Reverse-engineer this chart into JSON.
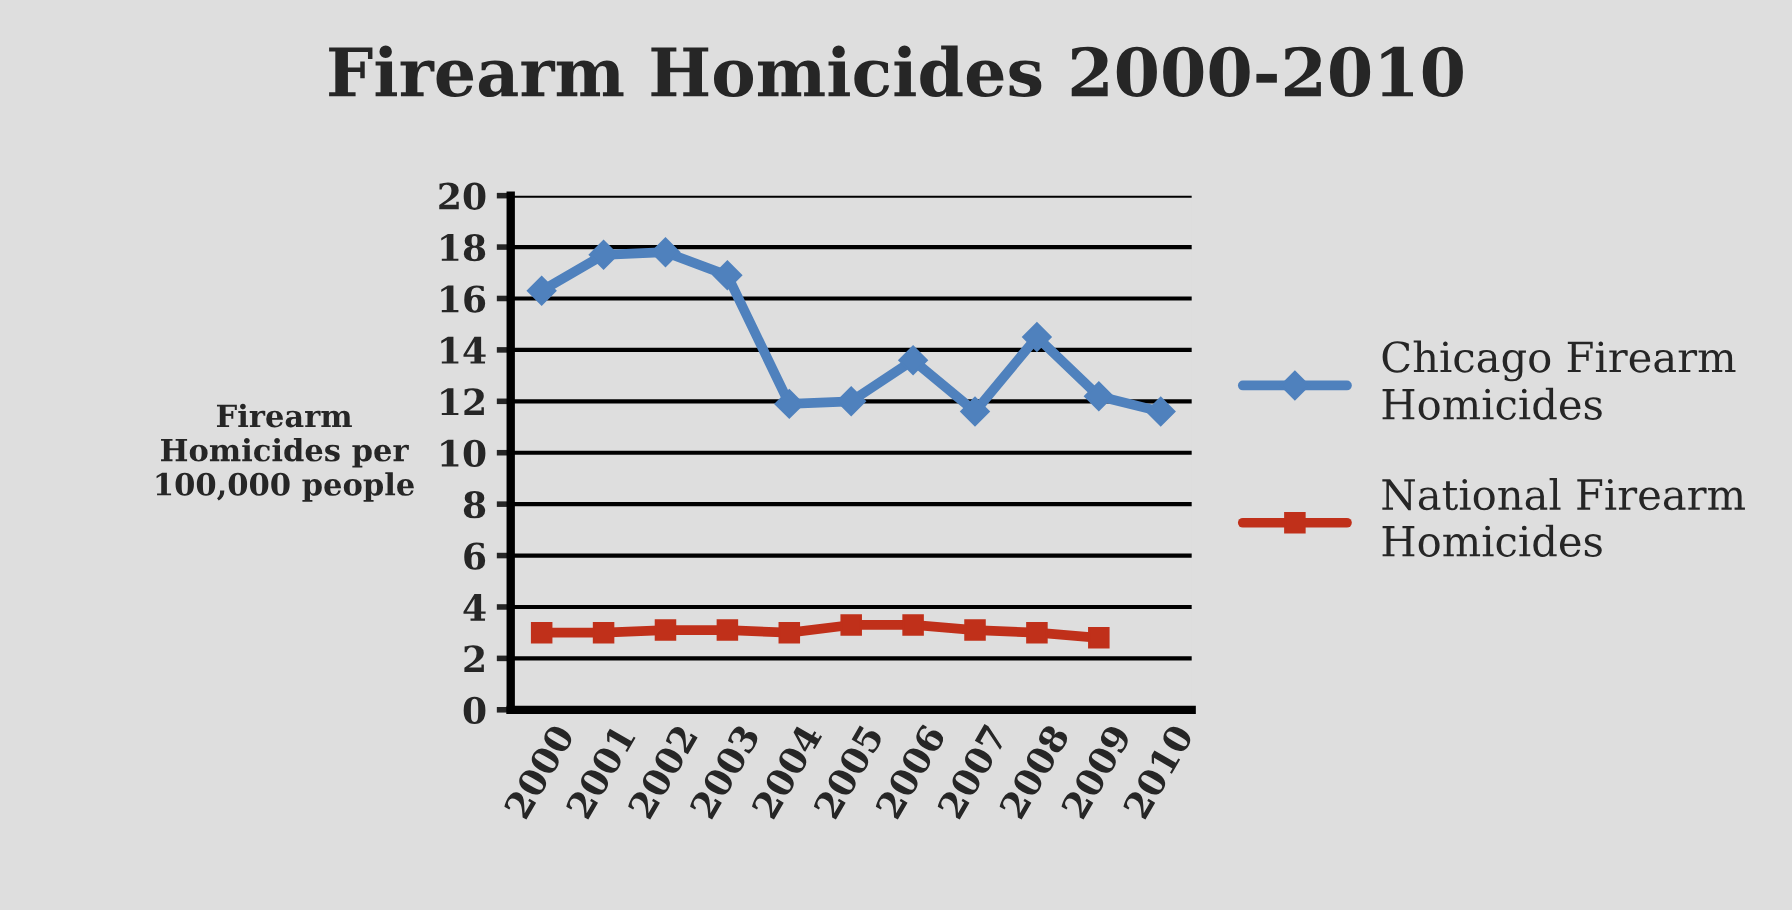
{
  "chart_data": {
    "type": "line",
    "title": "Firearm Homicides 2000-2010",
    "ylabel": "Firearm\nHomicides per\n100,000 people",
    "categories": [
      "2000",
      "2001",
      "2002",
      "2003",
      "2004",
      "2005",
      "2006",
      "2007",
      "2008",
      "2009",
      "2010"
    ],
    "series": [
      {
        "name": "Chicago Firearm\nHomicides",
        "color": "#4f81bd",
        "marker": "diamond",
        "values": [
          16.3,
          17.7,
          17.8,
          16.9,
          11.9,
          12.0,
          13.6,
          11.6,
          14.5,
          12.2,
          11.6
        ]
      },
      {
        "name": "National Firearm\nHomicides",
        "color": "#c0301a",
        "marker": "square",
        "values": [
          3.0,
          3.0,
          3.1,
          3.1,
          3.0,
          3.3,
          3.3,
          3.1,
          3.0,
          2.8,
          null
        ]
      }
    ],
    "ylim": [
      0,
      20
    ],
    "yticks": [
      0,
      2,
      4,
      6,
      8,
      10,
      12,
      14,
      16,
      18,
      20
    ],
    "grid": "y",
    "legend": "right",
    "line_style": "solid"
  }
}
